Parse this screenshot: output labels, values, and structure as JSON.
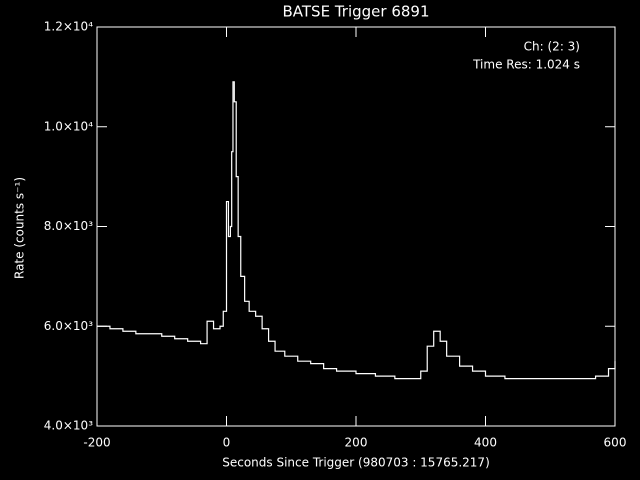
{
  "chart_data": {
    "type": "line",
    "title": "BATSE Trigger 6891",
    "xlabel": "Seconds Since Trigger (980703 : 15765.217)",
    "ylabel": "Rate (counts s⁻¹)",
    "annotations": [
      "Ch: (2: 3)",
      "Time Res: 1.024 s"
    ],
    "xlim": [
      -200,
      600
    ],
    "ylim": [
      4000,
      12000
    ],
    "xticks": [
      -200,
      0,
      200,
      400,
      600
    ],
    "yticks": [
      {
        "value": 4000,
        "label": "4.0×10³"
      },
      {
        "value": 6000,
        "label": "6.0×10³"
      },
      {
        "value": 8000,
        "label": "8.0×10³"
      },
      {
        "value": 10000,
        "label": "1.0×10⁴"
      },
      {
        "value": 12000,
        "label": "1.2×10⁴"
      }
    ],
    "color": "#ffffff",
    "x": [
      -200,
      -180,
      -160,
      -140,
      -120,
      -100,
      -80,
      -60,
      -40,
      -30,
      -20,
      -10,
      -5,
      0,
      3,
      6,
      8,
      10,
      12,
      15,
      18,
      22,
      28,
      35,
      45,
      55,
      65,
      75,
      90,
      110,
      130,
      150,
      170,
      200,
      230,
      260,
      290,
      300,
      310,
      320,
      330,
      340,
      360,
      380,
      400,
      430,
      460,
      500,
      540,
      570,
      590,
      600
    ],
    "values": [
      6000,
      5950,
      5900,
      5850,
      5850,
      5800,
      5750,
      5700,
      5650,
      6100,
      5950,
      6000,
      6300,
      8500,
      7800,
      8000,
      9500,
      10900,
      10500,
      9000,
      7800,
      7000,
      6500,
      6300,
      6200,
      5950,
      5700,
      5500,
      5400,
      5300,
      5250,
      5150,
      5100,
      5050,
      5000,
      4950,
      4950,
      5100,
      5600,
      5900,
      5700,
      5400,
      5200,
      5100,
      5000,
      4950,
      4950,
      4950,
      4950,
      5000,
      5150,
      5300
    ]
  }
}
